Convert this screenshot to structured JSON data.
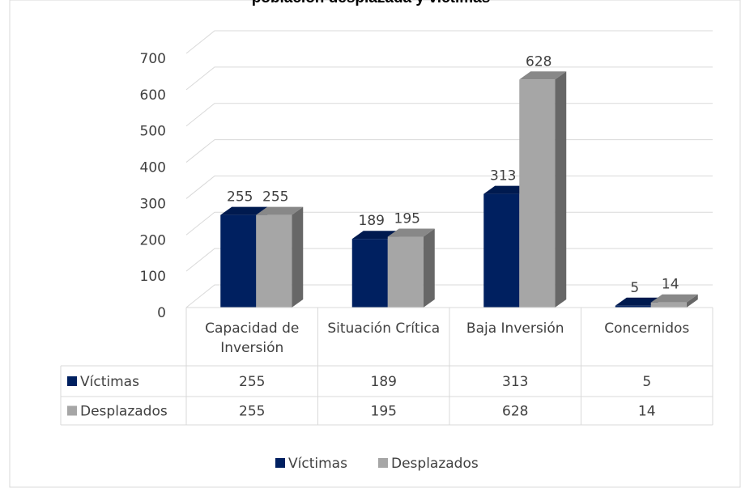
{
  "chart_data": {
    "type": "bar3d",
    "title": "población desplazada y víctimas",
    "categories": [
      "Capacidad de Inversión",
      "Situación Crítica",
      "Baja Inversión",
      "Concernidos"
    ],
    "series": [
      {
        "name": "Víctimas",
        "color": "#002060",
        "values": [
          255,
          189,
          313,
          5
        ]
      },
      {
        "name": "Desplazados",
        "color": "#a6a6a6",
        "values": [
          255,
          195,
          628,
          14
        ]
      }
    ],
    "ylim": [
      0,
      700
    ],
    "yticks": [
      0,
      100,
      200,
      300,
      400,
      500,
      600,
      700
    ],
    "grid": true,
    "legend": "bottom"
  }
}
